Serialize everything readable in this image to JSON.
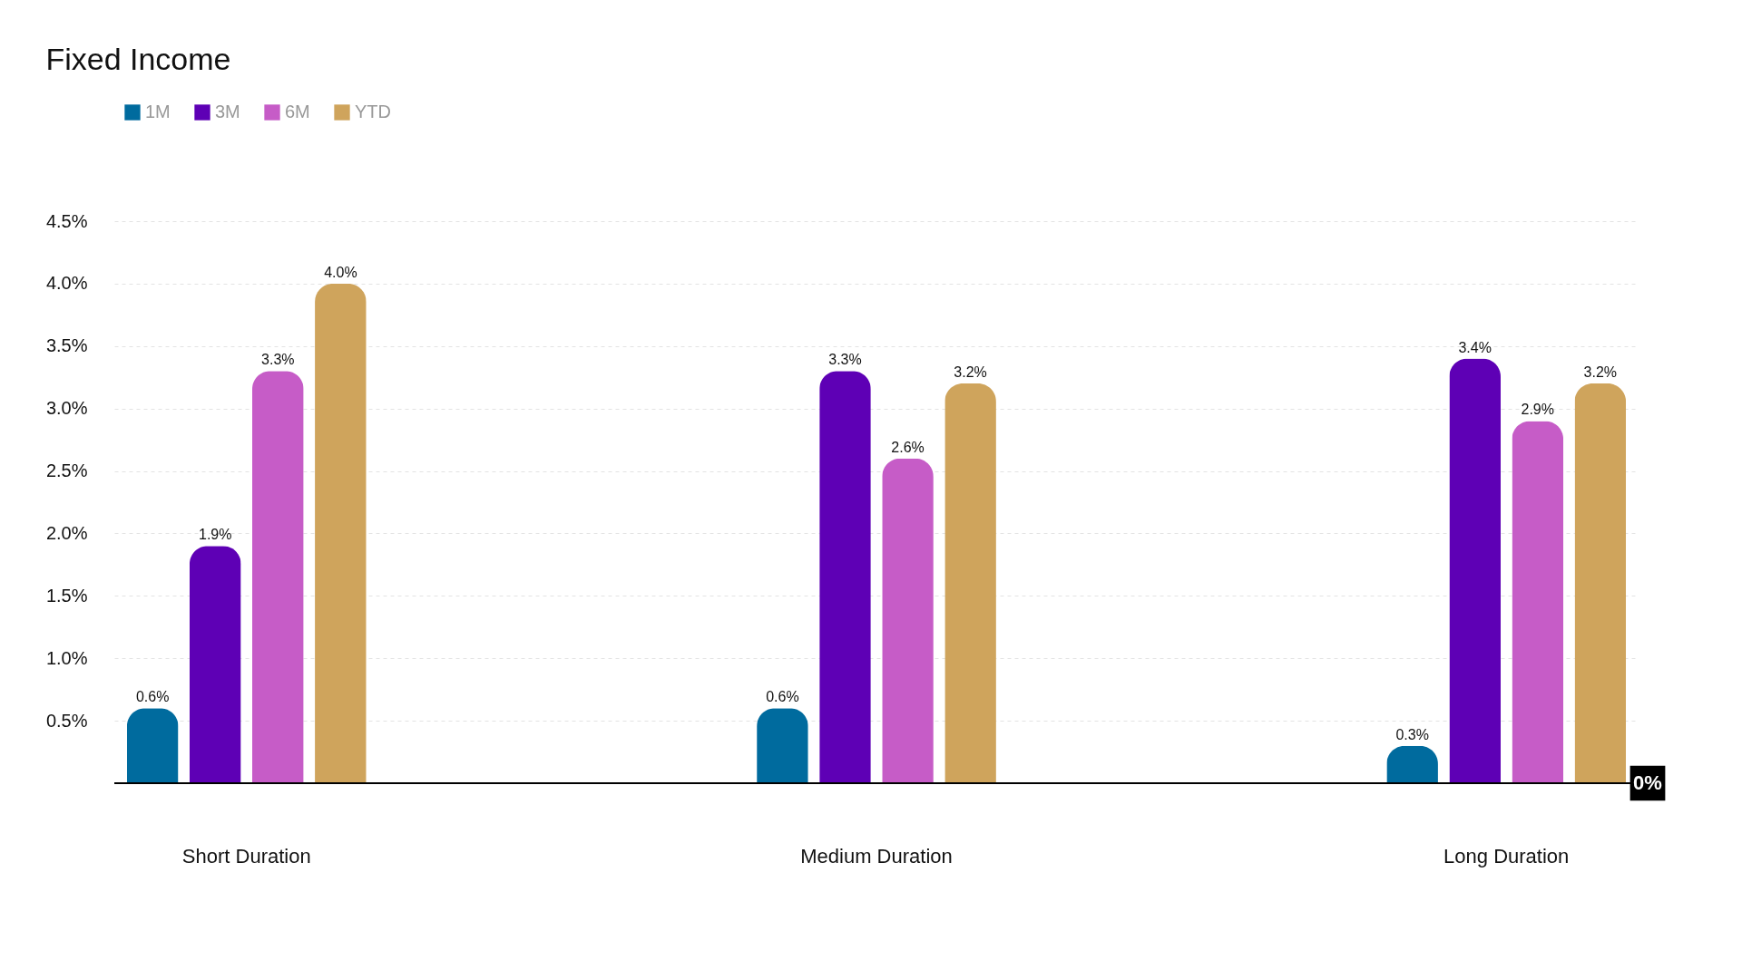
{
  "chart_data": {
    "type": "bar",
    "title": "Fixed Income",
    "categories": [
      "Short Duration",
      "Medium Duration",
      "Long Duration"
    ],
    "series": [
      {
        "name": "1M",
        "color": "#006b9e",
        "values": [
          0.6,
          0.6,
          0.3
        ],
        "value_labels": [
          "0.6%",
          "0.6%",
          "0.3%"
        ]
      },
      {
        "name": "3M",
        "color": "#5e00b5",
        "values": [
          1.9,
          3.3,
          3.4
        ],
        "value_labels": [
          "1.9%",
          "3.3%",
          "3.4%"
        ]
      },
      {
        "name": "6M",
        "color": "#c65cc7",
        "values": [
          3.3,
          2.6,
          2.9
        ],
        "value_labels": [
          "3.3%",
          "2.6%",
          "2.9%"
        ]
      },
      {
        "name": "YTD",
        "color": "#cfa45c",
        "values": [
          4.0,
          3.2,
          3.2
        ],
        "value_labels": [
          "4.0%",
          "3.2%",
          "3.2%"
        ]
      }
    ],
    "ylim": [
      0,
      4.5
    ],
    "yticks": [
      {
        "value": 0.5,
        "label": "0.5%"
      },
      {
        "value": 1.0,
        "label": "1.0%"
      },
      {
        "value": 1.5,
        "label": "1.5%"
      },
      {
        "value": 2.0,
        "label": "2.0%"
      },
      {
        "value": 2.5,
        "label": "2.5%"
      },
      {
        "value": 3.0,
        "label": "3.0%"
      },
      {
        "value": 3.5,
        "label": "3.5%"
      },
      {
        "value": 4.0,
        "label": "4.0%"
      },
      {
        "value": 4.5,
        "label": "4.5%"
      }
    ],
    "ref_lines": [
      {
        "axis": "y",
        "value": 0,
        "label": "0%",
        "color": "#000000"
      }
    ],
    "grid": "y",
    "legend": "top left"
  }
}
